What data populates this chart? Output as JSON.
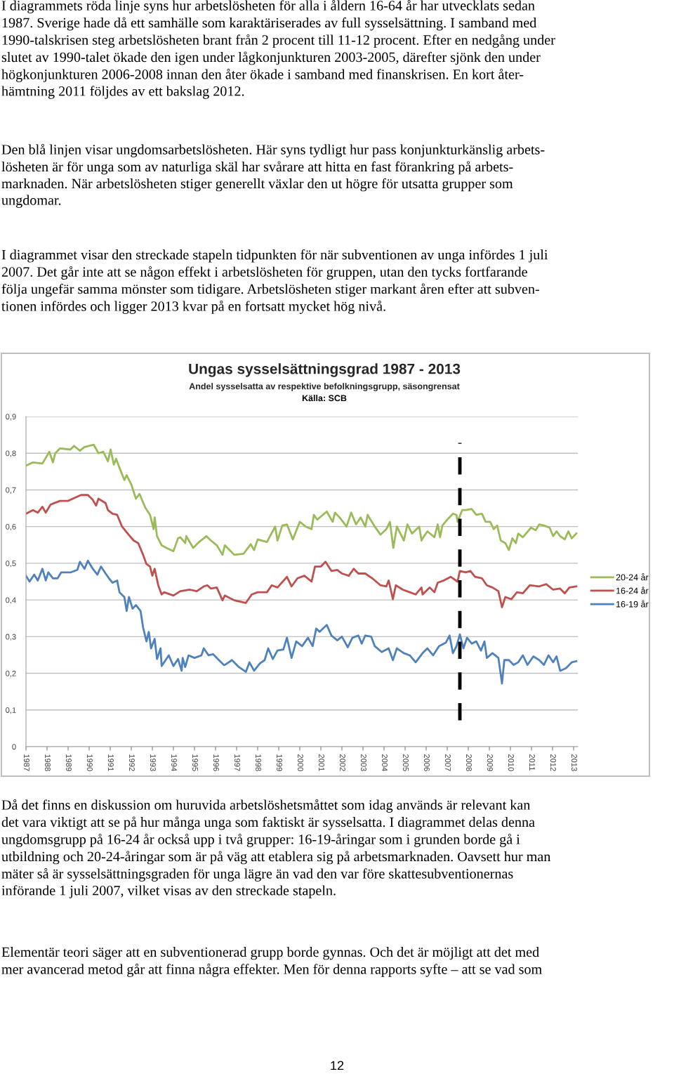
{
  "chart_data": {
    "type": "line",
    "title": "Ungas sysselsättningsgrad 1987 - 2013",
    "subtitle": "Andel sysselsatta av respektive befolkningsgrupp, säsongrensat",
    "annotations": [
      "I diagrammets röda linje syns hur arbetslösheten för alla i åldern 16-64 år har utvecklats sedan\n1987. Sverige hade då ett samhälle som karaktäriserades av full sysselsättning. I samband med\n1990-talskrisen steg arbetslösheten brant från 2 procent till 11-12 procent. Efter en nedgång under\nslutet av 1990-talet ökade den igen under lågkonjunkturen 2003-2005, därefter sjönk den under\nhögkonjunkturen 2006-2008 innan den åter ökade i samband med finanskrisen. En kort åter-\nhämtning 2011 följdes av ett bakslag 2012.",
      "Den blå linjen visar ungdomsarbetslösheten. Här syns tydligt hur pass konjunkturkänslig arbets-\nlösheten är för unga som av naturliga skäl har svårare att hitta en fast förankring på arbets-\nmarknaden. När arbetslösheten stiger generellt växlar den ut högre för utsatta grupper som\nungdomar.",
      "I diagrammet visar den streckade stapeln tidpunkten för när subventionen av unga infördes 1 juli\n2007. Det går inte att se någon effekt i arbetslösheten för gruppen, utan den tycks fortfarande\nfölja ungefär samma mönster som tidigare. Arbetslösheten stiger markant åren efter att subven-\ntionen infördes och ligger 2013 kvar på en fortsatt mycket hög nivå.",
      "Källa: SCB",
      "Då det finns en diskussion om huruvida arbetslöshetsmåttet som idag används är relevant kan\ndet vara viktigt att se på hur många unga som faktiskt är sysselsatta. I diagrammet delas denna\nungdomsgrupp på 16-24 år också upp i två grupper: 16-19-åringar som i grunden borde gå i\nutbildning och 20-24-åringar som är på väg att etablera sig på arbetsmarknaden. Oavsett hur man\nmäter så är sysselsättningsgraden för unga lägre än vad den var före skattesubventionernas\ninförande 1 juli 2007, vilket visas av den streckade stapeln.",
      "Elementär teori säger att en subventionerad grupp borde gynnas. Och det är möjligt att det med\nmer avancerad metod går att finna några effekter. Men för denna rapports syfte – att se vad som",
      "12"
    ],
    "xlim": [
      1987,
      2013.2
    ],
    "xticks": [
      1987,
      1988,
      1989,
      1990,
      1991,
      1992,
      1993,
      1994,
      1995,
      1996,
      1997,
      1998,
      1999,
      2000,
      2001,
      2002,
      2003,
      2004,
      2005,
      2006,
      2007,
      2008,
      2009,
      2010,
      2011,
      2012,
      2013
    ],
    "ylim": [
      0,
      0.9
    ],
    "yticks": [
      0,
      {
        "value": 0.1,
        "label": "0,1"
      },
      {
        "value": 0.2,
        "label": "0,2"
      },
      {
        "value": 0.3,
        "label": "0,3"
      },
      {
        "value": 0.4,
        "label": "0,4"
      },
      {
        "value": 0.5,
        "label": "0,5"
      },
      {
        "value": 0.6,
        "label": "0,6"
      },
      {
        "value": 0.7,
        "label": "0,7"
      },
      {
        "value": 0.8,
        "label": "0,8"
      },
      {
        "value": 0.9,
        "label": "0,9"
      }
    ],
    "grid": "y",
    "legend": "right",
    "ref_lines": [
      {
        "axis": "x",
        "value": 2007.6,
        "color": "#000000",
        "line_style": "dashed"
      }
    ],
    "series": [
      {
        "name": "20-24 år",
        "color": "#9bbb59",
        "x": [
          1987.0,
          1987.33,
          1987.78,
          1988.11,
          1988.28,
          1988.39,
          1988.61,
          1989.11,
          1989.28,
          1989.56,
          1989.78,
          1990.22,
          1990.44,
          1990.67,
          1990.89,
          1991.02,
          1991.17,
          1991.28,
          1991.44,
          1991.67,
          1991.78,
          1992.0,
          1992.22,
          1992.39,
          1992.67,
          1992.89,
          1993.06,
          1993.11,
          1993.22,
          1993.44,
          1993.67,
          1994.0,
          1994.22,
          1994.33,
          1994.56,
          1994.61,
          1994.94,
          1995.22,
          1995.44,
          1995.56,
          1995.78,
          1996.06,
          1996.33,
          1996.44,
          1996.89,
          1997.33,
          1997.67,
          1997.83,
          1998.0,
          1998.44,
          1998.83,
          1998.94,
          1999.17,
          1999.39,
          1999.67,
          2000.0,
          2000.28,
          2000.56,
          2000.67,
          2000.83,
          2001.28,
          2001.56,
          2001.67,
          2001.89,
          2002.22,
          2002.44,
          2002.67,
          2002.89,
          2003.11,
          2003.22,
          2003.56,
          2003.83,
          2004.11,
          2004.28,
          2004.44,
          2004.61,
          2004.94,
          2005.11,
          2005.33,
          2005.67,
          2005.78,
          2005.83,
          2006.06,
          2006.39,
          2006.55,
          2006.66,
          2006.77,
          2007.05,
          2007.27,
          2007.44,
          2007.49,
          2007.71,
          2007.88,
          2008.16,
          2008.38,
          2008.65,
          2008.82,
          2009.04,
          2009.21,
          2009.37,
          2009.54,
          2009.76,
          2009.93,
          2010.09,
          2010.26,
          2010.37,
          2010.59,
          2010.98,
          2011.2,
          2011.37,
          2011.59,
          2011.86,
          2012.03,
          2012.19,
          2012.36,
          2012.58,
          2012.75,
          2012.91,
          2013.13
        ],
        "values": [
          0.766,
          0.775,
          0.772,
          0.804,
          0.775,
          0.8,
          0.813,
          0.81,
          0.82,
          0.807,
          0.817,
          0.823,
          0.8,
          0.804,
          0.778,
          0.81,
          0.769,
          0.785,
          0.76,
          0.727,
          0.74,
          0.715,
          0.676,
          0.689,
          0.651,
          0.632,
          0.593,
          0.625,
          0.574,
          0.549,
          0.542,
          0.533,
          0.568,
          0.571,
          0.555,
          0.574,
          0.542,
          0.558,
          0.568,
          0.574,
          0.562,
          0.549,
          0.523,
          0.549,
          0.523,
          0.526,
          0.552,
          0.536,
          0.565,
          0.558,
          0.6,
          0.562,
          0.603,
          0.606,
          0.565,
          0.613,
          0.6,
          0.593,
          0.632,
          0.619,
          0.641,
          0.613,
          0.638,
          0.625,
          0.6,
          0.638,
          0.606,
          0.625,
          0.6,
          0.632,
          0.6,
          0.578,
          0.593,
          0.613,
          0.542,
          0.6,
          0.562,
          0.606,
          0.581,
          0.6,
          0.562,
          0.568,
          0.587,
          0.571,
          0.606,
          0.571,
          0.603,
          0.622,
          0.635,
          0.632,
          0.613,
          0.645,
          0.645,
          0.648,
          0.632,
          0.635,
          0.613,
          0.613,
          0.593,
          0.603,
          0.562,
          0.555,
          0.536,
          0.568,
          0.555,
          0.581,
          0.571,
          0.597,
          0.59,
          0.606,
          0.603,
          0.597,
          0.574,
          0.587,
          0.574,
          0.565,
          0.587,
          0.568,
          0.581
        ]
      },
      {
        "name": "16-24 år",
        "color": "#c0504d",
        "x": [
          1987.0,
          1987.33,
          1987.56,
          1987.78,
          1987.94,
          1988.17,
          1988.61,
          1989.0,
          1989.22,
          1989.61,
          1989.94,
          1990.17,
          1990.33,
          1990.44,
          1990.78,
          1990.89,
          1991.11,
          1991.33,
          1991.56,
          1991.83,
          1992.11,
          1992.33,
          1992.56,
          1992.72,
          1992.89,
          1993.0,
          1993.11,
          1993.28,
          1993.44,
          1993.56,
          1994.0,
          1994.33,
          1994.78,
          1995.11,
          1995.44,
          1995.61,
          1995.78,
          1996.06,
          1996.33,
          1996.44,
          1996.89,
          1997.44,
          1997.72,
          1998.0,
          1998.44,
          1998.67,
          1998.94,
          1999.39,
          1999.61,
          1999.89,
          2000.22,
          2000.56,
          2000.72,
          2001.0,
          2001.22,
          2001.5,
          2001.78,
          2002.0,
          2002.33,
          2002.56,
          2002.78,
          2003.11,
          2003.44,
          2003.83,
          2004.11,
          2004.22,
          2004.42,
          2004.56,
          2004.89,
          2005.22,
          2005.5,
          2005.78,
          2005.83,
          2006.17,
          2006.39,
          2006.55,
          2006.83,
          2007.16,
          2007.49,
          2007.6,
          2007.88,
          2008.1,
          2008.32,
          2008.65,
          2008.88,
          2009.15,
          2009.43,
          2009.6,
          2009.76,
          2010.04,
          2010.31,
          2010.59,
          2010.92,
          2011.37,
          2011.7,
          2012.03,
          2012.36,
          2012.58,
          2012.8,
          2013.13
        ],
        "values": [
          0.635,
          0.645,
          0.638,
          0.654,
          0.638,
          0.66,
          0.67,
          0.67,
          0.676,
          0.686,
          0.686,
          0.673,
          0.657,
          0.676,
          0.664,
          0.645,
          0.635,
          0.632,
          0.6,
          0.581,
          0.562,
          0.555,
          0.523,
          0.498,
          0.491,
          0.466,
          0.485,
          0.44,
          0.415,
          0.421,
          0.412,
          0.424,
          0.428,
          0.424,
          0.437,
          0.44,
          0.431,
          0.434,
          0.399,
          0.412,
          0.399,
          0.392,
          0.415,
          0.421,
          0.421,
          0.44,
          0.434,
          0.463,
          0.437,
          0.459,
          0.466,
          0.45,
          0.491,
          0.491,
          0.504,
          0.479,
          0.482,
          0.472,
          0.466,
          0.485,
          0.472,
          0.472,
          0.459,
          0.44,
          0.437,
          0.453,
          0.402,
          0.44,
          0.428,
          0.421,
          0.415,
          0.434,
          0.415,
          0.434,
          0.421,
          0.447,
          0.453,
          0.463,
          0.45,
          0.479,
          0.475,
          0.479,
          0.463,
          0.459,
          0.44,
          0.434,
          0.424,
          0.38,
          0.408,
          0.402,
          0.421,
          0.418,
          0.44,
          0.437,
          0.443,
          0.428,
          0.431,
          0.418,
          0.434,
          0.437
        ]
      },
      {
        "name": "16-19 år",
        "color": "#4f81bd",
        "x": [
          1987.0,
          1987.17,
          1987.39,
          1987.56,
          1987.78,
          1987.94,
          1988.06,
          1988.28,
          1988.5,
          1988.67,
          1989.11,
          1989.44,
          1989.56,
          1989.78,
          1989.94,
          1990.17,
          1990.39,
          1990.56,
          1990.78,
          1990.94,
          1991.11,
          1991.33,
          1991.44,
          1991.67,
          1991.78,
          1991.89,
          1992.06,
          1992.22,
          1992.44,
          1992.56,
          1992.72,
          1992.83,
          1992.94,
          1993.11,
          1993.22,
          1993.39,
          1993.44,
          1993.78,
          1994.0,
          1994.22,
          1994.39,
          1994.44,
          1994.56,
          1994.72,
          1995.0,
          1995.33,
          1995.44,
          1995.67,
          1995.89,
          1996.11,
          1996.39,
          1996.44,
          1996.78,
          1997.11,
          1997.44,
          1997.61,
          1997.83,
          1998.11,
          1998.33,
          1998.5,
          1998.72,
          1998.94,
          1999.22,
          1999.39,
          1999.61,
          1999.83,
          2000.11,
          2000.39,
          2000.61,
          2000.78,
          2000.94,
          2001.28,
          2001.5,
          2001.78,
          2002.0,
          2002.28,
          2002.5,
          2002.78,
          2002.94,
          2003.11,
          2003.39,
          2003.56,
          2003.89,
          2004.22,
          2004.42,
          2004.61,
          2004.94,
          2005.22,
          2005.5,
          2005.83,
          2006.06,
          2006.33,
          2006.61,
          2006.94,
          2007.11,
          2007.27,
          2007.44,
          2007.6,
          2007.77,
          2007.94,
          2008.16,
          2008.38,
          2008.6,
          2008.77,
          2008.88,
          2009.15,
          2009.43,
          2009.6,
          2009.71,
          2009.93,
          2010.15,
          2010.37,
          2010.59,
          2010.81,
          2011.09,
          2011.37,
          2011.59,
          2011.81,
          2012.03,
          2012.19,
          2012.36,
          2012.64,
          2012.91,
          2013.13
        ],
        "values": [
          0.466,
          0.45,
          0.469,
          0.453,
          0.485,
          0.453,
          0.475,
          0.459,
          0.459,
          0.475,
          0.475,
          0.482,
          0.504,
          0.485,
          0.507,
          0.485,
          0.469,
          0.491,
          0.472,
          0.459,
          0.447,
          0.453,
          0.421,
          0.408,
          0.37,
          0.408,
          0.376,
          0.386,
          0.37,
          0.325,
          0.287,
          0.313,
          0.268,
          0.294,
          0.239,
          0.268,
          0.22,
          0.249,
          0.22,
          0.239,
          0.207,
          0.242,
          0.217,
          0.249,
          0.242,
          0.249,
          0.268,
          0.249,
          0.252,
          0.239,
          0.223,
          0.223,
          0.236,
          0.217,
          0.204,
          0.23,
          0.207,
          0.227,
          0.236,
          0.268,
          0.239,
          0.262,
          0.265,
          0.297,
          0.242,
          0.287,
          0.274,
          0.297,
          0.274,
          0.322,
          0.313,
          0.332,
          0.303,
          0.29,
          0.3,
          0.271,
          0.297,
          0.303,
          0.281,
          0.303,
          0.3,
          0.274,
          0.258,
          0.268,
          0.236,
          0.268,
          0.255,
          0.249,
          0.23,
          0.255,
          0.268,
          0.249,
          0.274,
          0.284,
          0.303,
          0.255,
          0.274,
          0.306,
          0.268,
          0.297,
          0.281,
          0.287,
          0.262,
          0.287,
          0.242,
          0.255,
          0.242,
          0.172,
          0.236,
          0.236,
          0.223,
          0.23,
          0.249,
          0.223,
          0.246,
          0.236,
          0.223,
          0.249,
          0.23,
          0.246,
          0.207,
          0.214,
          0.23,
          0.233
        ]
      }
    ]
  }
}
